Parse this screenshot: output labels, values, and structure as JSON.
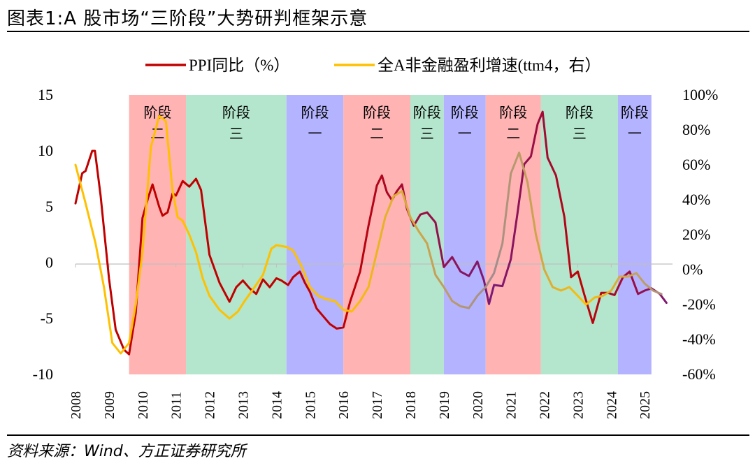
{
  "header": {
    "title": "图表1:A 股市场“三阶段”大势研判框架示意"
  },
  "footer": {
    "source": "资料来源：Wind、方正证券研究所"
  },
  "chart_data": {
    "type": "line",
    "legend_position": "top",
    "legend": [
      {
        "label": "PPI同比（%）",
        "color": "#c00000"
      },
      {
        "label": "全A非金融盈利增速(ttm4，右）",
        "color": "#ffc000"
      }
    ],
    "x_axis": {
      "ticks": [
        "2008",
        "2009",
        "2010",
        "2011",
        "2012",
        "2013",
        "2014",
        "2015",
        "2016",
        "2017",
        "2018",
        "2019",
        "2020",
        "2021",
        "2022",
        "2023",
        "2024",
        "2025"
      ],
      "range": [
        2008.0,
        2025.83
      ]
    },
    "y_left": {
      "ticks": [
        "15",
        "10",
        "5",
        "0",
        "-5",
        "-10"
      ],
      "range": [
        -10,
        15
      ]
    },
    "y_right": {
      "ticks": [
        "100%",
        "80%",
        "60%",
        "40%",
        "20%",
        "0%",
        "-20%",
        "-40%",
        "-60%"
      ],
      "range": [
        -60,
        100
      ]
    },
    "phases": [
      {
        "start": 2009.6,
        "end": 2011.3,
        "line1": "阶段",
        "line2": "二",
        "color": "#ffb3b3"
      },
      {
        "start": 2011.3,
        "end": 2014.3,
        "line1": "阶段",
        "line2": "三",
        "color": "#b3e6cc"
      },
      {
        "start": 2014.3,
        "end": 2016.0,
        "line1": "阶段",
        "line2": "一",
        "color": "#b3b3ff"
      },
      {
        "start": 2016.0,
        "end": 2018.0,
        "line1": "阶段",
        "line2": "二",
        "color": "#ffb3b3"
      },
      {
        "start": 2018.0,
        "end": 2019.0,
        "line1": "阶段",
        "line2": "三",
        "color": "#b3e6cc"
      },
      {
        "start": 2019.0,
        "end": 2020.25,
        "line1": "阶段",
        "line2": "一",
        "color": "#b3b3ff"
      },
      {
        "start": 2020.25,
        "end": 2021.9,
        "line1": "阶段",
        "line2": "二",
        "color": "#ffb3b3"
      },
      {
        "start": 2021.9,
        "end": 2024.2,
        "line1": "阶段",
        "line2": "三",
        "color": "#b3e6cc"
      },
      {
        "start": 2024.2,
        "end": 2025.2,
        "line1": "阶段",
        "line2": "一",
        "color": "#b3b3ff"
      }
    ],
    "series": [
      {
        "name": "PPI同比（%）",
        "axis": "left",
        "color": "#c00000",
        "color_end": "#7a1a7a",
        "x": [
          2008.0,
          2008.2,
          2008.3,
          2008.5,
          2008.58,
          2008.75,
          2009.0,
          2009.2,
          2009.45,
          2009.6,
          2009.8,
          2010.0,
          2010.17,
          2010.3,
          2010.5,
          2010.6,
          2010.75,
          2010.9,
          2011.0,
          2011.2,
          2011.4,
          2011.6,
          2011.75,
          2012.0,
          2012.3,
          2012.6,
          2012.8,
          2013.0,
          2013.2,
          2013.4,
          2013.6,
          2013.8,
          2014.0,
          2014.15,
          2014.35,
          2014.5,
          2014.7,
          2014.85,
          2015.0,
          2015.2,
          2015.4,
          2015.6,
          2015.8,
          2016.0,
          2016.2,
          2016.5,
          2016.75,
          2017.0,
          2017.15,
          2017.3,
          2017.45,
          2017.6,
          2017.75,
          2017.9,
          2018.1,
          2018.3,
          2018.5,
          2018.75,
          2019.0,
          2019.25,
          2019.5,
          2019.75,
          2020.0,
          2020.2,
          2020.35,
          2020.5,
          2020.75,
          2021.0,
          2021.2,
          2021.4,
          2021.6,
          2021.8,
          2021.95,
          2022.1,
          2022.35,
          2022.6,
          2022.8,
          2023.0,
          2023.2,
          2023.45,
          2023.7,
          2023.9,
          2024.1,
          2024.35,
          2024.55,
          2024.8,
          2025.0,
          2025.2,
          2025.45,
          2025.65
        ],
        "y": [
          5.3,
          8,
          8.2,
          10,
          10,
          6,
          -1.4,
          -6,
          -7.8,
          -8.2,
          -4.5,
          4,
          5.8,
          7,
          5,
          4.2,
          4.5,
          6.2,
          6,
          7.3,
          6.8,
          7.5,
          6.5,
          0.7,
          -1.8,
          -3.5,
          -2.2,
          -1.6,
          -2.3,
          -2.8,
          -1.5,
          -2.2,
          -1.4,
          -1.6,
          -2,
          -1.3,
          -0.8,
          -1.8,
          -2.6,
          -4.1,
          -4.8,
          -5.5,
          -5.9,
          -5.8,
          -3.5,
          -0.8,
          3.3,
          6.9,
          7.8,
          6.3,
          5.6,
          6.4,
          7,
          4.8,
          3.3,
          4.3,
          4.5,
          3.6,
          -0.4,
          0.5,
          -0.8,
          -1.2,
          0.1,
          -1.6,
          -3.7,
          -2,
          -2.1,
          0.3,
          4.4,
          8.8,
          9.5,
          12.4,
          13.5,
          9.4,
          7.8,
          4.1,
          -1.3,
          -0.8,
          -2.9,
          -5.4,
          -2.7,
          -2.7,
          -2.9,
          -1.3,
          -0.8,
          -2.8,
          -2.5,
          -2.3,
          -2.8,
          -3.6
        ]
      },
      {
        "name": "全A非金融盈利增速(ttm4，右）",
        "axis": "right",
        "color": "#ffc000",
        "color_end": "#a08c90",
        "x": [
          2008.0,
          2008.3,
          2008.6,
          2008.85,
          2009.1,
          2009.35,
          2009.6,
          2009.8,
          2010.0,
          2010.25,
          2010.5,
          2010.7,
          2010.9,
          2011.05,
          2011.2,
          2011.4,
          2011.6,
          2011.8,
          2012.0,
          2012.3,
          2012.6,
          2012.85,
          2013.05,
          2013.35,
          2013.6,
          2013.85,
          2014.0,
          2014.3,
          2014.5,
          2014.75,
          2015.0,
          2015.25,
          2015.5,
          2015.75,
          2016.0,
          2016.25,
          2016.5,
          2016.75,
          2017.0,
          2017.25,
          2017.5,
          2017.75,
          2018.0,
          2018.25,
          2018.5,
          2018.75,
          2019.0,
          2019.25,
          2019.5,
          2019.75,
          2020.0,
          2020.25,
          2020.5,
          2020.75,
          2021.0,
          2021.25,
          2021.5,
          2021.75,
          2022.0,
          2022.25,
          2022.5,
          2022.75,
          2023.0,
          2023.25,
          2023.5,
          2023.75,
          2024.0,
          2024.25,
          2024.5,
          2024.75,
          2025.0,
          2025.25,
          2025.5
        ],
        "y": [
          60,
          38,
          15,
          -10,
          -42,
          -48,
          -42,
          -20,
          10,
          70,
          88,
          85,
          45,
          30,
          28,
          20,
          10,
          -5,
          -15,
          -23,
          -28,
          -24,
          -18,
          -10,
          -3,
          12,
          14,
          13,
          11,
          2,
          -10,
          -15,
          -17,
          -18,
          -23,
          -24,
          -18,
          -10,
          10,
          30,
          42,
          45,
          30,
          22,
          15,
          -3,
          -10,
          -18,
          -21,
          -22,
          -15,
          -10,
          -2,
          15,
          55,
          67,
          50,
          20,
          0,
          -10,
          -12,
          -10,
          -15,
          -20,
          -16,
          -15,
          -12,
          -4,
          -4,
          -2,
          -8,
          -12,
          -14
        ]
      }
    ]
  }
}
